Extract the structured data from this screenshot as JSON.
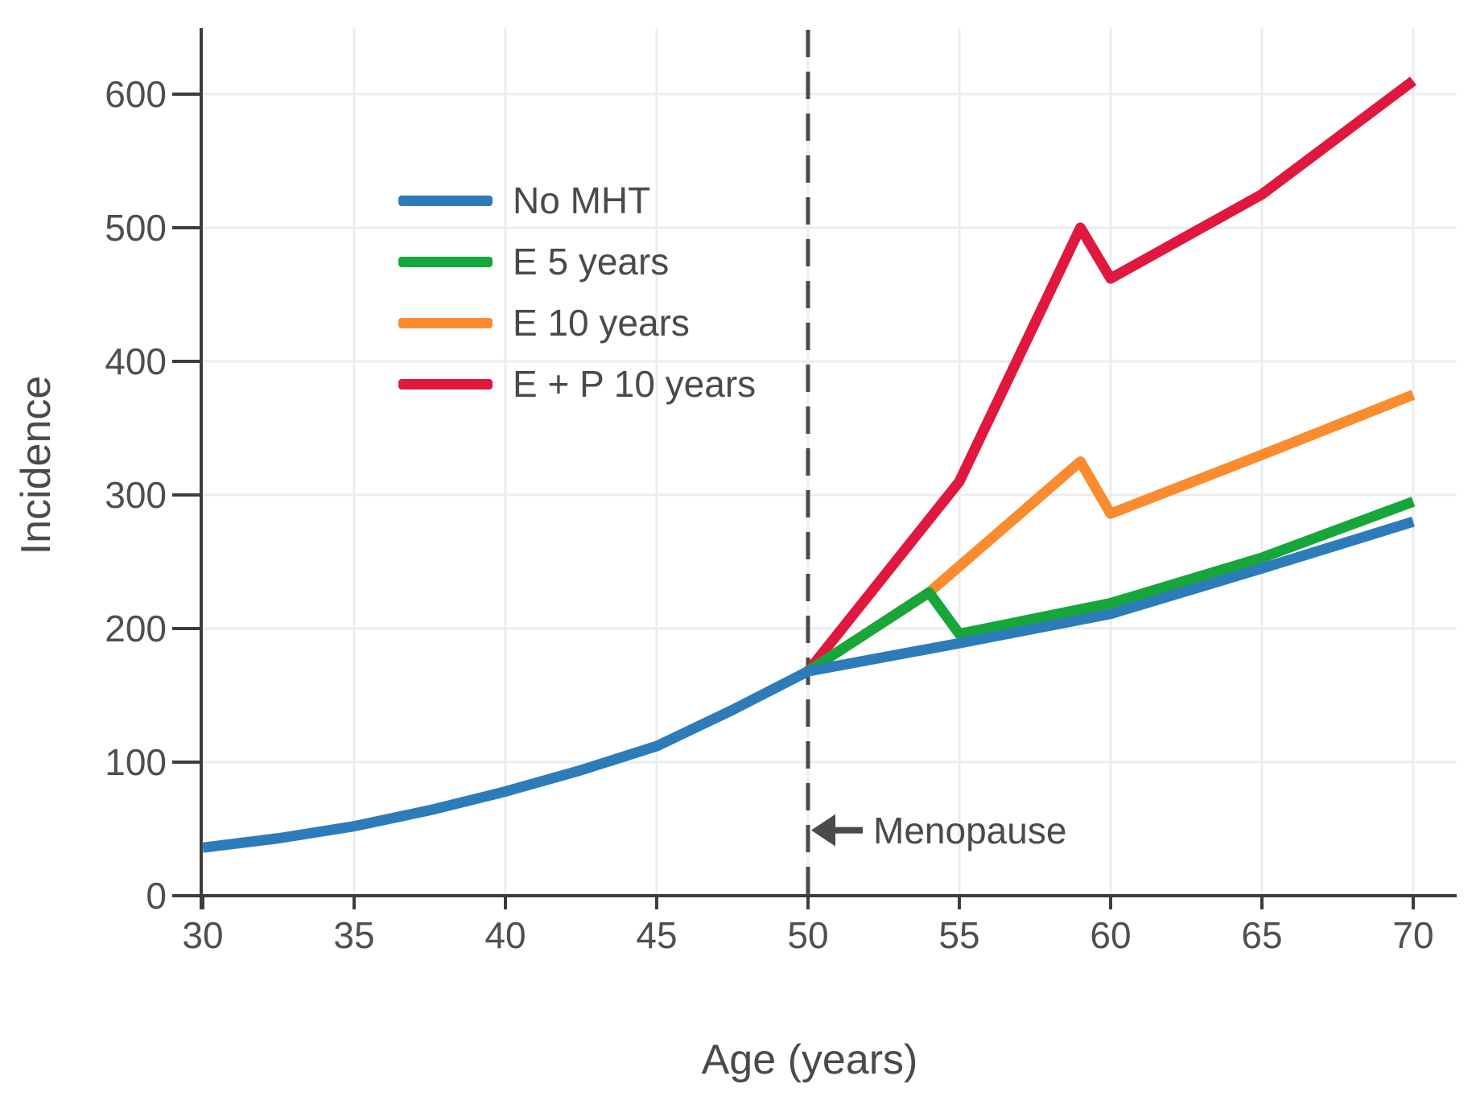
{
  "chart_data": {
    "type": "line",
    "title": "",
    "xlabel": "Age (years)",
    "ylabel": "Incidence",
    "xlim": [
      30,
      70
    ],
    "ylim": [
      0,
      650
    ],
    "xticks": [
      30,
      35,
      40,
      45,
      50,
      55,
      60,
      65,
      70
    ],
    "yticks": [
      0,
      100,
      200,
      300,
      400,
      500,
      600
    ],
    "grid": true,
    "legend_position": "upper-left-inside",
    "series": [
      {
        "name": "No MHT",
        "color": "#2d7cba",
        "points": [
          [
            30,
            36
          ],
          [
            32.5,
            43
          ],
          [
            35,
            52
          ],
          [
            37.5,
            64
          ],
          [
            40,
            78
          ],
          [
            42.5,
            94
          ],
          [
            45,
            112
          ],
          [
            47.5,
            139
          ],
          [
            50,
            168
          ],
          [
            55,
            189
          ],
          [
            60,
            211
          ],
          [
            65,
            245
          ],
          [
            70,
            280
          ]
        ]
      },
      {
        "name": "E 5 years",
        "color": "#17a63a",
        "points": [
          [
            50,
            168
          ],
          [
            54,
            227
          ],
          [
            55,
            196
          ],
          [
            60,
            219
          ],
          [
            65,
            253
          ],
          [
            70,
            295
          ]
        ]
      },
      {
        "name": "E 10 years",
        "color": "#fb8b2f",
        "points": [
          [
            50,
            168
          ],
          [
            54,
            227
          ],
          [
            59,
            325
          ],
          [
            60,
            286
          ],
          [
            65,
            330
          ],
          [
            70,
            375
          ]
        ]
      },
      {
        "name": "E + P 10 years",
        "color": "#e0173e",
        "points": [
          [
            50,
            168
          ],
          [
            55,
            310
          ],
          [
            59,
            500
          ],
          [
            60,
            462
          ],
          [
            65,
            525
          ],
          [
            70,
            610
          ]
        ]
      }
    ],
    "annotations": [
      {
        "type": "vline-dashed",
        "x": 50,
        "label": "Menopause",
        "label_y_value": 49,
        "arrow": "left"
      }
    ],
    "colors": {
      "axis": "#3d3d3d",
      "tick_label": "#4f4f4f",
      "grid": "#ededed",
      "annotation": "#4a4a4a"
    }
  }
}
